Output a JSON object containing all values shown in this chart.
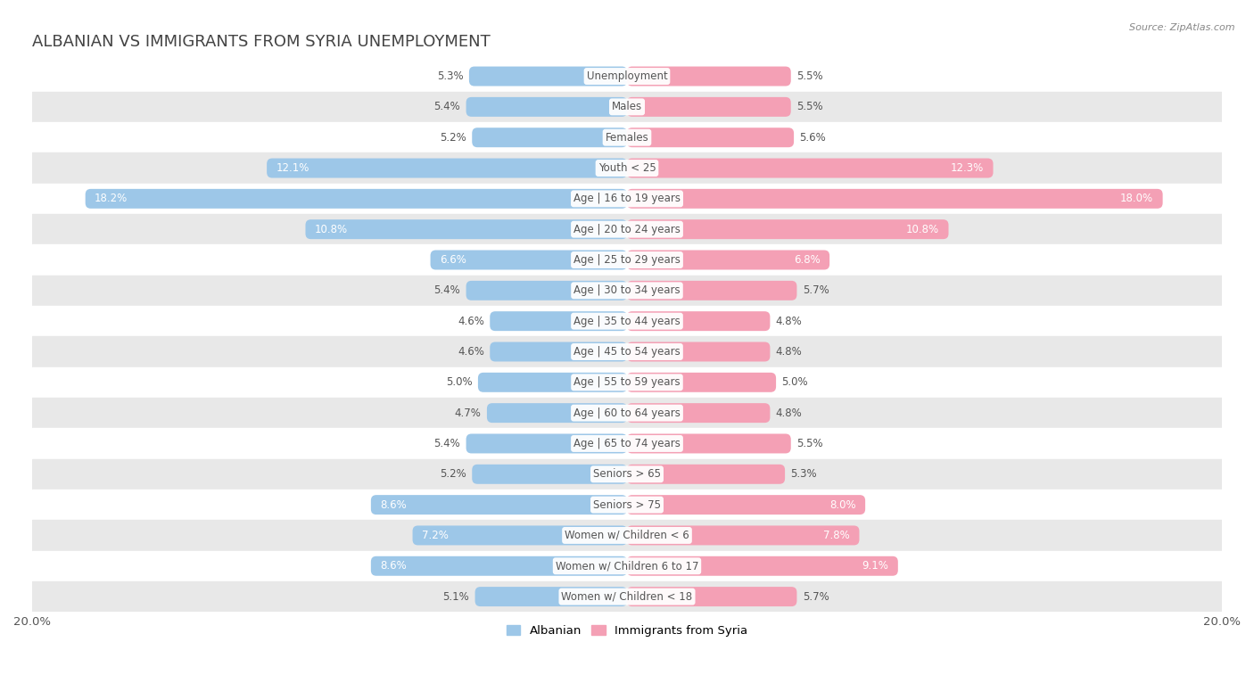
{
  "title": "ALBANIAN VS IMMIGRANTS FROM SYRIA UNEMPLOYMENT",
  "source": "Source: ZipAtlas.com",
  "categories": [
    "Unemployment",
    "Males",
    "Females",
    "Youth < 25",
    "Age | 16 to 19 years",
    "Age | 20 to 24 years",
    "Age | 25 to 29 years",
    "Age | 30 to 34 years",
    "Age | 35 to 44 years",
    "Age | 45 to 54 years",
    "Age | 55 to 59 years",
    "Age | 60 to 64 years",
    "Age | 65 to 74 years",
    "Seniors > 65",
    "Seniors > 75",
    "Women w/ Children < 6",
    "Women w/ Children 6 to 17",
    "Women w/ Children < 18"
  ],
  "albanian": [
    5.3,
    5.4,
    5.2,
    12.1,
    18.2,
    10.8,
    6.6,
    5.4,
    4.6,
    4.6,
    5.0,
    4.7,
    5.4,
    5.2,
    8.6,
    7.2,
    8.6,
    5.1
  ],
  "syria": [
    5.5,
    5.5,
    5.6,
    12.3,
    18.0,
    10.8,
    6.8,
    5.7,
    4.8,
    4.8,
    5.0,
    4.8,
    5.5,
    5.3,
    8.0,
    7.8,
    9.1,
    5.7
  ],
  "albanian_color": "#9dc7e8",
  "syria_color": "#f4a0b5",
  "fig_bg": "#ffffff",
  "row_color_light": "#ffffff",
  "row_color_dark": "#e8e8e8",
  "max_val": 20.0,
  "legend_albanian": "Albanian",
  "legend_syria": "Immigrants from Syria",
  "bar_height": 0.62,
  "title_fontsize": 13,
  "label_fontsize": 8.5,
  "value_fontsize": 8.5,
  "title_color": "#444444",
  "source_color": "#888888",
  "value_color_inside": "#ffffff",
  "value_color_outside": "#555555",
  "label_box_color": "#ffffff",
  "label_text_color": "#555555"
}
